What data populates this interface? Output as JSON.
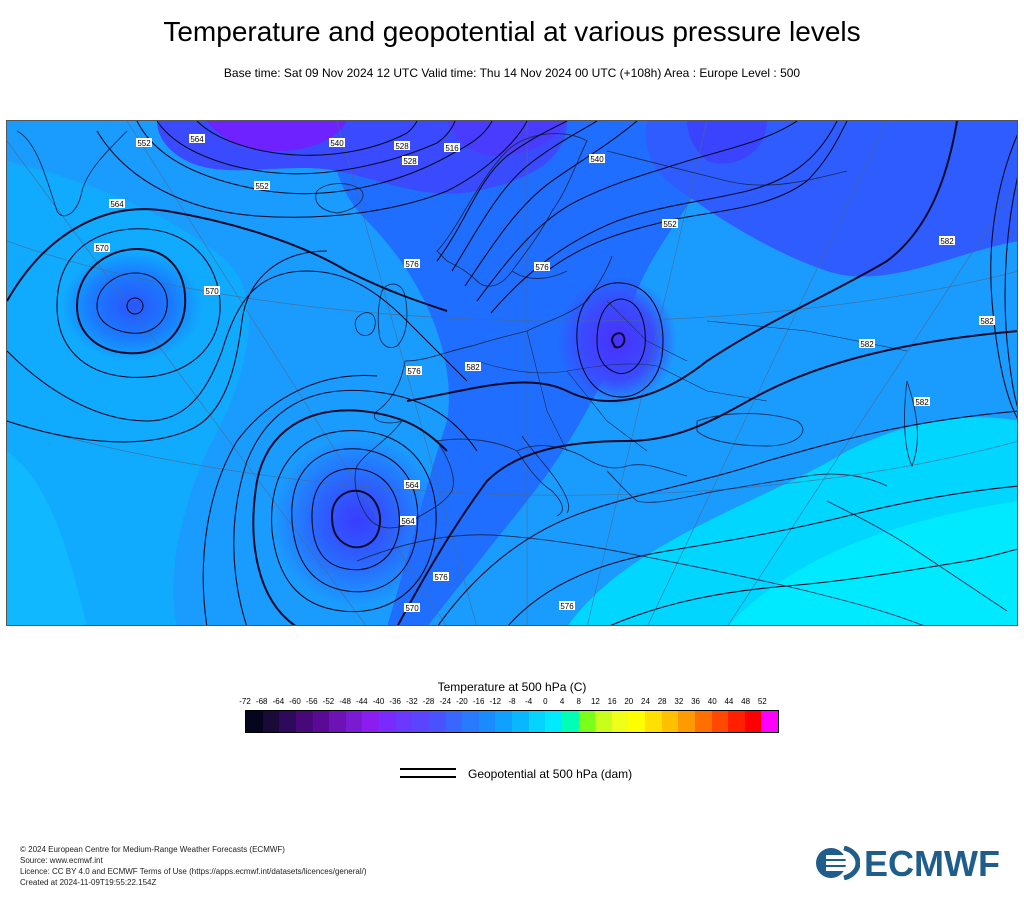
{
  "header": {
    "title": "Temperature and geopotential at various pressure levels",
    "subtitle": "Base time: Sat 09 Nov 2024 12 UTC Valid time: Thu 14 Nov 2024 00 UTC (+108h) Area : Europe Level : 500"
  },
  "map": {
    "area": "Europe",
    "level": "500",
    "colors": {
      "cyan": "#00eaff",
      "light_blue": "#0fb8ff",
      "mid_blue": "#1a7cff",
      "deep_blue": "#3a4bff",
      "violet": "#6d22ff",
      "coastline": "#1a2a55",
      "contour": "#0a0a28"
    },
    "contour_labels": [
      "552",
      "552",
      "540",
      "528",
      "528",
      "516",
      "540",
      "552",
      "564",
      "564",
      "570",
      "570",
      "576",
      "576",
      "576",
      "582",
      "582",
      "582",
      "564",
      "564",
      "576",
      "570",
      "576",
      "582",
      "582"
    ]
  },
  "colorbar": {
    "title": "Temperature at 500 hPa (C)",
    "ticks": [
      "-72",
      "-68",
      "-64",
      "-60",
      "-56",
      "-52",
      "-48",
      "-44",
      "-40",
      "-36",
      "-32",
      "-28",
      "-24",
      "-20",
      "-16",
      "-12",
      "-8",
      "-4",
      "0",
      "4",
      "8",
      "12",
      "16",
      "20",
      "24",
      "28",
      "32",
      "36",
      "40",
      "44",
      "48",
      "52"
    ],
    "colors": [
      "#05051e",
      "#1a0a38",
      "#2e0a5c",
      "#48087a",
      "#5a0a96",
      "#6d12b4",
      "#7a1ad2",
      "#8a1ef0",
      "#7a2aff",
      "#6a38ff",
      "#5a44ff",
      "#4a52ff",
      "#3866ff",
      "#2a7aff",
      "#1a8cff",
      "#10a0ff",
      "#0ab8ff",
      "#04d4ff",
      "#00eaff",
      "#00ffb4",
      "#7aff1a",
      "#c8ff1a",
      "#f0ff1a",
      "#ffff00",
      "#ffe000",
      "#ffc000",
      "#ff9a00",
      "#ff7000",
      "#ff4800",
      "#ff2000",
      "#ff0000",
      "#ff00ff"
    ]
  },
  "legend": {
    "line_label": "Geopotential at 500 hPa (dam)"
  },
  "footer": {
    "lines": [
      "© 2024 European Centre for Medium-Range Weather Forecasts (ECMWF)",
      "Source: www.ecmwf.int",
      "Licence: CC BY 4.0 and ECMWF Terms of Use (https://apps.ecmwf.int/datasets/licences/general/)",
      "Created at 2024-11-09T19:55:22.154Z"
    ]
  },
  "logo": {
    "text": "ECMWF",
    "color": "#1f5e8c"
  }
}
